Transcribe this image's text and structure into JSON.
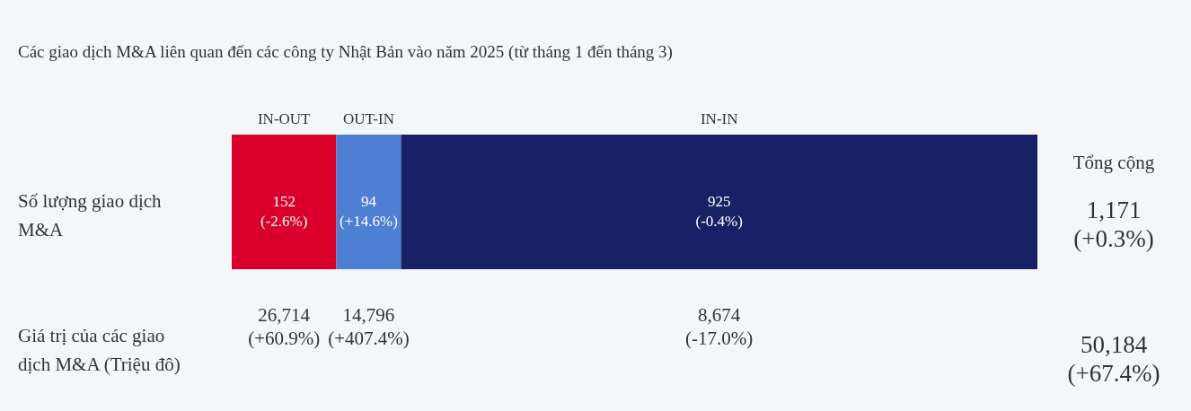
{
  "chart_data": {
    "type": "bar",
    "orientation": "horizontal",
    "stacked": true,
    "title": "Các giao dịch M&A liên quan đến các công ty Nhật Bản vào năm 2025 (từ tháng 1 đến tháng 3)",
    "categories": [
      "Số lượng giao dịch M&A",
      "Giá trị của các giao dịch M&A (Triệu đô)"
    ],
    "series": [
      {
        "name": "IN-OUT",
        "color": "#d8002a",
        "values": [
          152,
          null
        ],
        "value_labels": [
          "152\n(-2.6%)",
          null
        ]
      },
      {
        "name": "OUT-IN",
        "color": "#4d7fd3",
        "values": [
          94,
          null
        ],
        "value_labels": [
          "94\n(+14.6%)",
          null
        ]
      },
      {
        "name": "IN-IN",
        "color": "#182166",
        "values": [
          925,
          null
        ],
        "value_labels": [
          "925\n(-0.4%)",
          null
        ]
      }
    ],
    "totals": [
      "1,171\n(+0.3%)",
      "50,184\n(+67.4%)"
    ],
    "annotations": [
      "Tổng cộng",
      "26,714\n(+60.9%)",
      "14,796\n(+407.4%)",
      "8,674\n(-17.0%)"
    ],
    "tick_labels": "y"
  }
}
